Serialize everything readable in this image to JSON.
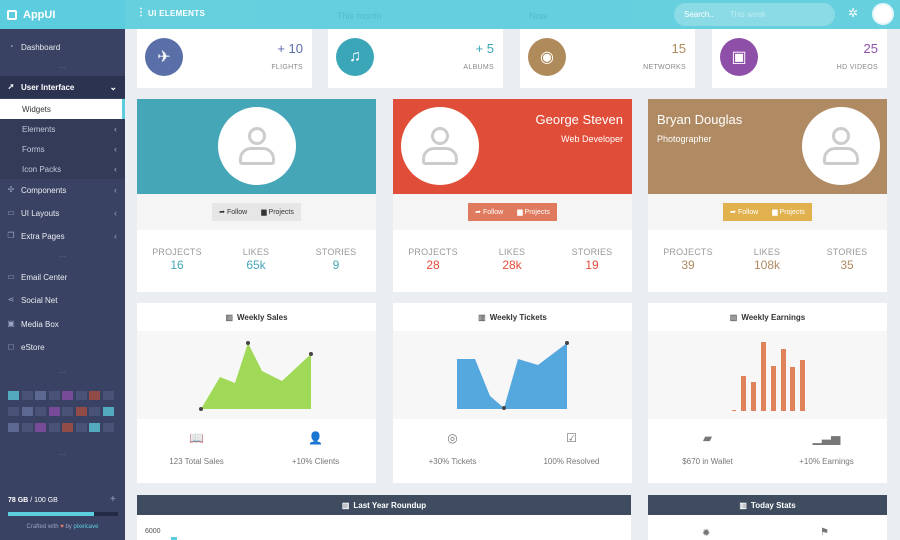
{
  "app": {
    "name": "AppUI"
  },
  "topbar": {
    "title": "UI ELEMENTS",
    "ghost": [
      "This month",
      "Now"
    ],
    "search_placeholder": "Search..",
    "search_ghost": "This week"
  },
  "sidebar": {
    "items": [
      {
        "label": "Dashboard",
        "icon": "dashboard-icon"
      },
      {
        "label": "User Interface",
        "icon": "rocket-icon",
        "open": true
      },
      {
        "label": "Components",
        "icon": "components-icon"
      },
      {
        "label": "UI Layouts",
        "icon": "layouts-icon"
      },
      {
        "label": "Extra Pages",
        "icon": "pages-icon"
      },
      {
        "label": "Email Center",
        "icon": "email-icon"
      },
      {
        "label": "Social Net",
        "icon": "share-icon"
      },
      {
        "label": "Media Box",
        "icon": "image-icon"
      },
      {
        "label": "eStore",
        "icon": "store-icon"
      }
    ],
    "subitems": [
      "Widgets",
      "Elements",
      "Forms",
      "Icon Packs"
    ],
    "storage_used": "78 GB",
    "storage_total": "/ 100 GB",
    "storage_fraction": 0.78,
    "credit_prefix": "Crafted with",
    "credit_by": "by",
    "credit_author": "pixelcave"
  },
  "stats": [
    {
      "value": "+ 10",
      "label": "FLIGHTS",
      "icon": "plane-icon",
      "color": "#5a6ea8"
    },
    {
      "value": "+ 5",
      "label": "ALBUMS",
      "icon": "album-icon",
      "color": "#3aa6b8"
    },
    {
      "value": "15",
      "label": "NETWORKS",
      "icon": "wifi-icon",
      "color": "#af8a5b"
    },
    {
      "value": "25",
      "label": "HD VIDEOS",
      "icon": "video-icon",
      "color": "#8e4fa9"
    }
  ],
  "profiles": [
    {
      "name": "",
      "role": "",
      "color": "#45a6b8",
      "btn_color": "#e6e6e6",
      "stats": [
        {
          "label": "PROJECTS",
          "value": "16"
        },
        {
          "label": "LIKES",
          "value": "65k"
        },
        {
          "label": "STORIES",
          "value": "9"
        }
      ]
    },
    {
      "name": "George Steven",
      "role": "Web Developer",
      "color": "#e04d38",
      "btn_color": "#e07a5f",
      "stats": [
        {
          "label": "PROJECTS",
          "value": "28"
        },
        {
          "label": "LIKES",
          "value": "28k"
        },
        {
          "label": "STORIES",
          "value": "19"
        }
      ]
    },
    {
      "name": "Bryan Douglas",
      "role": "Photographer",
      "color": "#b08a63",
      "btn_color": "#e1b14e",
      "stats": [
        {
          "label": "PROJECTS",
          "value": "39"
        },
        {
          "label": "LIKES",
          "value": "108k"
        },
        {
          "label": "STORIES",
          "value": "35"
        }
      ]
    }
  ],
  "profile_buttons": {
    "follow": "Follow",
    "projects": "Projects"
  },
  "charts": [
    {
      "title": "Weekly Sales",
      "color": "#9fd957",
      "footer": [
        {
          "icon": "book-icon",
          "text": "123 Total Sales"
        },
        {
          "icon": "add-user-icon",
          "text": "+10% Clients"
        }
      ]
    },
    {
      "title": "Weekly Tickets",
      "color": "#55a8de",
      "footer": [
        {
          "icon": "support-icon",
          "text": "+30% Tickets"
        },
        {
          "icon": "check-icon",
          "text": "100% Resolved"
        }
      ]
    },
    {
      "title": "Weekly Earnings",
      "color": "#e0825a",
      "footer": [
        {
          "icon": "wallet-icon",
          "text": "$670 in Wallet"
        },
        {
          "icon": "bars-icon",
          "text": "+10% Earnings"
        }
      ]
    }
  ],
  "bottom": {
    "roundup_title": "Last Year Roundup",
    "today_title": "Today Stats",
    "axis_top": "6000"
  }
}
